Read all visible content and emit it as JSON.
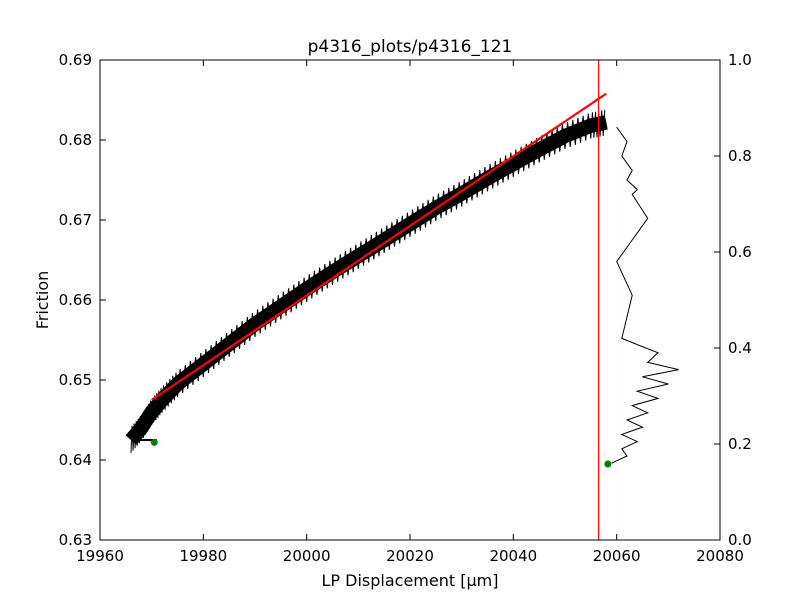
{
  "chart_data": {
    "type": "line",
    "title": "p4316_plots/p4316_121",
    "xlabel": "LP Displacement [μm]",
    "ylabel": "Friction",
    "xlim": [
      19960,
      20080
    ],
    "ylim": [
      0.63,
      0.69
    ],
    "y2lim": [
      0.0,
      1.0
    ],
    "grid": false,
    "xticks": [
      "19960",
      "19980",
      "20000",
      "20020",
      "20040",
      "20060",
      "20080"
    ],
    "yticks": [
      "0.63",
      "0.64",
      "0.65",
      "0.66",
      "0.67",
      "0.68",
      "0.69"
    ],
    "y2ticks": [
      "0.0",
      "0.2",
      "0.4",
      "0.6",
      "0.8",
      "1.0"
    ],
    "colors": {
      "data": "#000000",
      "fit": "#ff0000",
      "marker": "#008000",
      "vline": "#ff0000"
    },
    "series": [
      {
        "role": "friction-data",
        "axis": "left",
        "x": [
          19966,
          19968,
          19970,
          19972,
          19975,
          19980,
          19985,
          19990,
          19995,
          20000,
          20005,
          20010,
          20015,
          20020,
          20025,
          20030,
          20035,
          20040,
          20045,
          20050,
          20055,
          20058
        ],
        "y": [
          0.6425,
          0.644,
          0.646,
          0.6475,
          0.6495,
          0.652,
          0.6545,
          0.657,
          0.6592,
          0.6614,
          0.6635,
          0.6655,
          0.6675,
          0.6695,
          0.6715,
          0.6733,
          0.6752,
          0.677,
          0.6788,
          0.6805,
          0.6818,
          0.6822
        ],
        "band": 0.0018
      },
      {
        "role": "trace",
        "axis": "right",
        "x": [
          20059,
          20062,
          20061,
          20064,
          20061,
          20065,
          20062,
          20066,
          20063,
          20068,
          20064,
          20070,
          20065,
          20072,
          20066,
          20068,
          20061,
          20063,
          20060,
          20066,
          20063,
          20064,
          20062,
          20063,
          20061,
          20062,
          20060
        ],
        "y": [
          0.16,
          0.175,
          0.19,
          0.205,
          0.22,
          0.235,
          0.25,
          0.265,
          0.28,
          0.295,
          0.31,
          0.325,
          0.34,
          0.355,
          0.37,
          0.39,
          0.42,
          0.51,
          0.58,
          0.67,
          0.72,
          0.73,
          0.75,
          0.77,
          0.8,
          0.83,
          0.86
        ]
      },
      {
        "role": "linear-fit",
        "axis": "left",
        "x": [
          19970,
          20058
        ],
        "y": [
          0.6475,
          0.6858
        ]
      }
    ],
    "vline": {
      "x": 20056.5
    },
    "markers": [
      {
        "axis": "left",
        "x": 19970.5,
        "y": 0.6422
      },
      {
        "axis": "left",
        "x": 20058.3,
        "y": 0.6395
      }
    ]
  }
}
